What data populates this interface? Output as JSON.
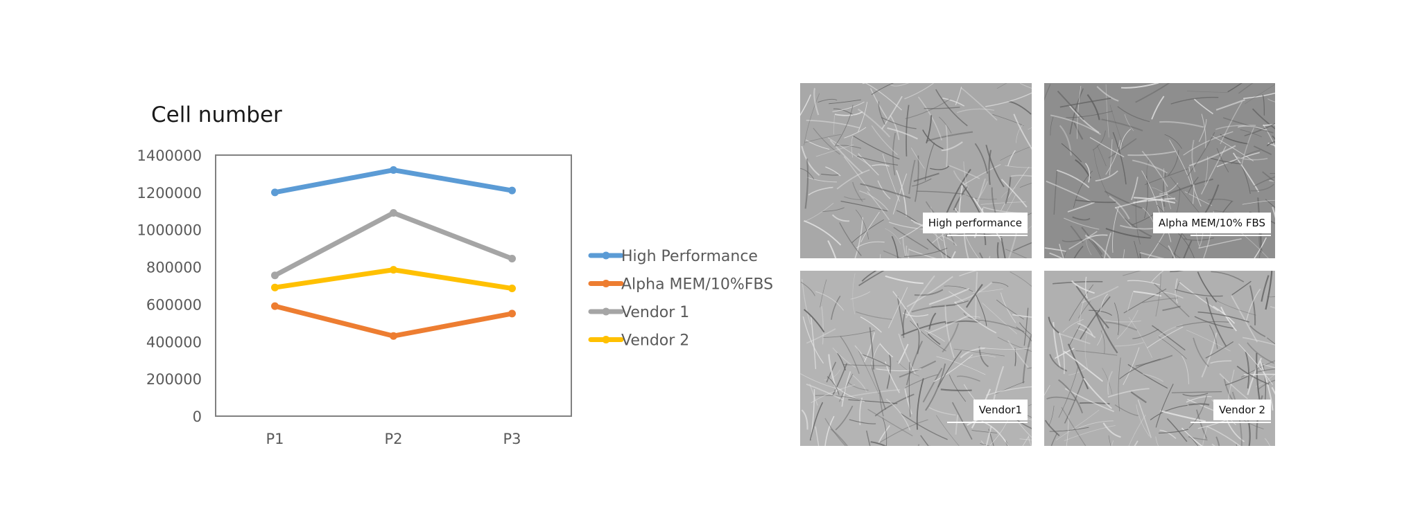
{
  "chart_data": {
    "type": "line",
    "title": "Cell number",
    "categories": [
      "P1",
      "P2",
      "P3"
    ],
    "ylim": [
      0,
      1400000
    ],
    "yticks": [
      0,
      200000,
      400000,
      600000,
      800000,
      1000000,
      1200000,
      1400000
    ],
    "grid": false,
    "legend": "right",
    "series": [
      {
        "name": "High Performance",
        "values": [
          1200000,
          1320000,
          1210000
        ],
        "color": "#5B9BD5"
      },
      {
        "name": "Alpha MEM/10%FBS",
        "values": [
          590000,
          430000,
          550000
        ],
        "color": "#ED7D31"
      },
      {
        "name": "Vendor 1",
        "values": [
          755000,
          1090000,
          845000
        ],
        "color": "#A5A5A5"
      },
      {
        "name": "Vendor 2",
        "values": [
          690000,
          785000,
          685000
        ],
        "color": "#FFC000"
      }
    ]
  },
  "micrographs": [
    {
      "label": "High performance",
      "tone": "#a8a8a8"
    },
    {
      "label": "Alpha MEM/10% FBS",
      "tone": "#8e8e8e"
    },
    {
      "label": "Vendor1",
      "tone": "#b4b4b4"
    },
    {
      "label": "Vendor 2",
      "tone": "#b0b0b0"
    }
  ]
}
